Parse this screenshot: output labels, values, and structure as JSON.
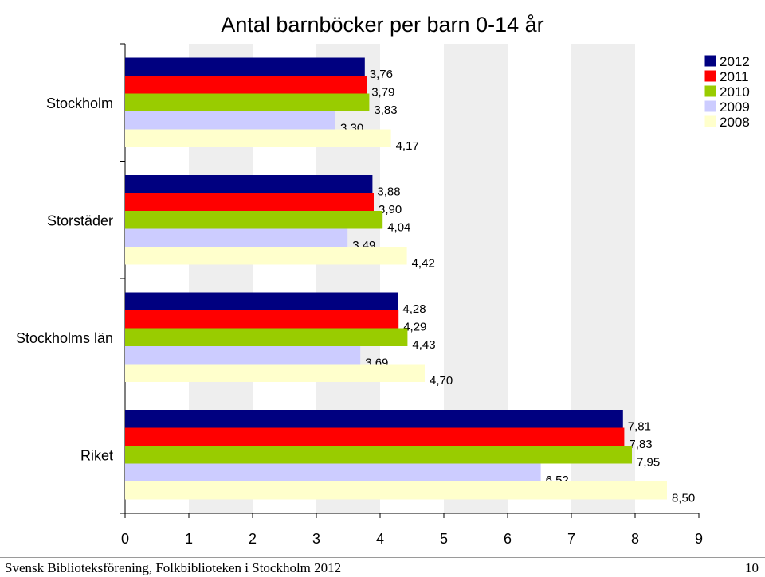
{
  "chart_data": {
    "type": "bar",
    "orientation": "horizontal",
    "title": "Antal barnböcker per barn 0-14 år",
    "categories": [
      "Stockholm",
      "Storstäder",
      "Stockholms län",
      "Riket"
    ],
    "series": [
      {
        "name": "2012",
        "color": "#000080",
        "values": [
          3.76,
          3.88,
          4.28,
          7.81
        ],
        "labels": [
          "3,76",
          "3,88",
          "4,28",
          "7,81"
        ]
      },
      {
        "name": "2011",
        "color": "#ff0000",
        "values": [
          3.79,
          3.9,
          4.29,
          7.83
        ],
        "labels": [
          "3,79",
          "3,90",
          "4,29",
          "7,83"
        ]
      },
      {
        "name": "2010",
        "color": "#99cc00",
        "values": [
          3.83,
          4.04,
          4.43,
          7.95
        ],
        "labels": [
          "3,83",
          "4,04",
          "4,43",
          "7,95"
        ]
      },
      {
        "name": "2009",
        "color": "#ccccff",
        "values": [
          3.3,
          3.49,
          3.69,
          6.52
        ],
        "labels": [
          "3,30",
          "3,49",
          "3,69",
          "6,52"
        ]
      },
      {
        "name": "2008",
        "color": "#ffffcc",
        "values": [
          4.17,
          4.42,
          4.7,
          8.5
        ],
        "labels": [
          "4,17",
          "4,42",
          "4,70",
          "8,50"
        ]
      }
    ],
    "xlim": [
      0,
      9
    ],
    "xticks": [
      "0",
      "1",
      "2",
      "3",
      "4",
      "5",
      "6",
      "7",
      "8",
      "9"
    ],
    "plot_background": "#ffffff",
    "grid_band_color": "#eeeeee",
    "legend_position": "top-right"
  },
  "footer": {
    "source": "Svensk Biblioteksförening, Folkbiblioteken i Stockholm 2012",
    "page_number": "10"
  }
}
